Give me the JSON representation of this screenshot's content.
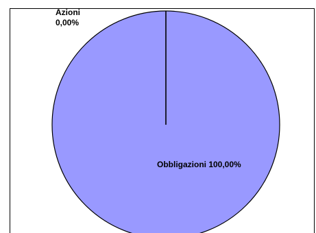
{
  "chart_data": {
    "type": "pie",
    "title": "",
    "slices": [
      {
        "label": "Obbligazioni",
        "value": 100.0,
        "display": "100,00%",
        "color": "#9999ff"
      },
      {
        "label": "Azioni",
        "value": 0.0,
        "display": "0,00%",
        "color": "#993366"
      }
    ],
    "labels": {
      "obbligazioni": "Obbligazioni  100,00%",
      "azioni_name": "Azioni",
      "azioni_value": "0,00%"
    },
    "outline_color": "#000000",
    "background": "#ffffff",
    "legend": "none"
  }
}
